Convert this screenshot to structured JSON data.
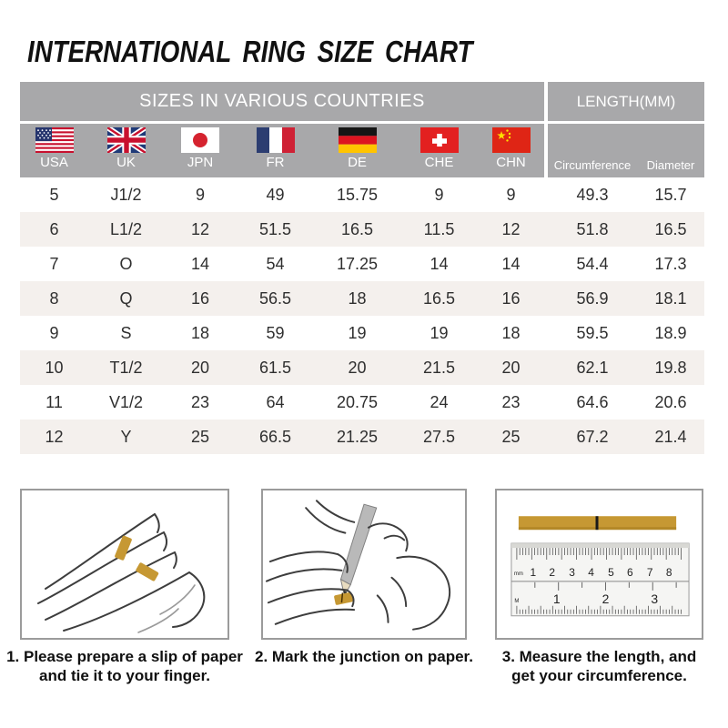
{
  "page": {
    "title": "INTERNATIONAL RING SIZE CHART"
  },
  "chart_data": {
    "type": "table",
    "title": "INTERNATIONAL RING SIZE CHART",
    "group_headers": [
      "SIZES IN VARIOUS COUNTRIES",
      "LENGTH(MM)"
    ],
    "country_columns": [
      {
        "label": "USA",
        "flag_icon": "usa-flag-icon"
      },
      {
        "label": "UK",
        "flag_icon": "uk-flag-icon"
      },
      {
        "label": "JPN",
        "flag_icon": "japan-flag-icon"
      },
      {
        "label": "FR",
        "flag_icon": "france-flag-icon"
      },
      {
        "label": "DE",
        "flag_icon": "germany-flag-icon"
      },
      {
        "label": "CHE",
        "flag_icon": "switzerland-flag-icon"
      },
      {
        "label": "CHN",
        "flag_icon": "china-flag-icon"
      }
    ],
    "length_columns": [
      "Circumference",
      "Diameter"
    ],
    "rows": [
      [
        "5",
        "J1/2",
        "9",
        "49",
        "15.75",
        "9",
        "9",
        "49.3",
        "15.7"
      ],
      [
        "6",
        "L1/2",
        "12",
        "51.5",
        "16.5",
        "11.5",
        "12",
        "51.8",
        "16.5"
      ],
      [
        "7",
        "O",
        "14",
        "54",
        "17.25",
        "14",
        "14",
        "54.4",
        "17.3"
      ],
      [
        "8",
        "Q",
        "16",
        "56.5",
        "18",
        "16.5",
        "16",
        "56.9",
        "18.1"
      ],
      [
        "9",
        "S",
        "18",
        "59",
        "19",
        "19",
        "18",
        "59.5",
        "18.9"
      ],
      [
        "10",
        "T1/2",
        "20",
        "61.5",
        "20",
        "21.5",
        "20",
        "62.1",
        "19.8"
      ],
      [
        "11",
        "V1/2",
        "23",
        "64",
        "20.75",
        "24",
        "23",
        "64.6",
        "20.6"
      ],
      [
        "12",
        "Y",
        "25",
        "66.5",
        "21.25",
        "27.5",
        "25",
        "67.2",
        "21.4"
      ]
    ]
  },
  "instructions": [
    {
      "step": "1",
      "caption_line1": "1. Please prepare a slip of paper",
      "caption_line2": "and tie it to your finger.",
      "illustration": "hand-with-paper-slip"
    },
    {
      "step": "2",
      "caption_line1": "2. Mark the junction on paper.",
      "caption_line2": "",
      "illustration": "mark-junction-with-pencil"
    },
    {
      "step": "3",
      "caption_line1": "3. Measure the length, and",
      "caption_line2": "get your circumference.",
      "illustration": "ruler-measurement",
      "ruler": {
        "unit_top": "mm",
        "cm_numbers": [
          "1",
          "2",
          "3",
          "4",
          "5",
          "6",
          "7",
          "8"
        ],
        "inch_numbers": [
          "1",
          "2",
          "3"
        ],
        "unit_bottom": "M"
      }
    }
  ],
  "colors": {
    "header_bg": "#a8a8aa",
    "row_alt_bg": "#f4f0ed",
    "gold": "#c69833",
    "table_text": "#2f2f2f",
    "box_border": "#9b9b9b",
    "title_color": "#111111"
  }
}
